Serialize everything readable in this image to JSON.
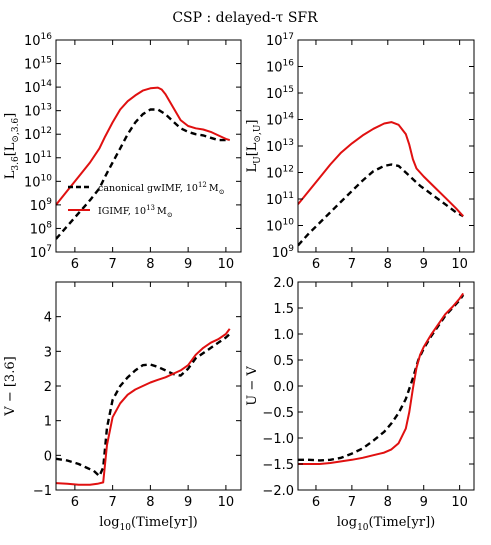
{
  "figure_title": "CSP : delayed-τ SFR",
  "legend": [
    {
      "label": "canonical gwIMF,  10",
      "sup": "12",
      "unit": "M",
      "unit_sub": "⊙",
      "style": "dashed",
      "color": "#000000"
    },
    {
      "label": "IGIMF,  10",
      "sup": "13",
      "unit": "M",
      "unit_sub": "⊙",
      "style": "solid",
      "color": "#e01010"
    }
  ],
  "chart_data": [
    {
      "id": "tl",
      "type": "line",
      "title": "",
      "xlabel": "",
      "ylabel_main": "L",
      "ylabel_sub": "3.6",
      "ylabel_tail": "[L",
      "ylabel_tail_sub": "⊙,3.6",
      "ylabel_end": "]",
      "xlim": [
        5.5,
        10.4
      ],
      "ylim": [
        7,
        16
      ],
      "yscale": "log",
      "xticks": [
        6,
        7,
        8,
        9,
        10
      ],
      "yticks": [
        7,
        8,
        9,
        10,
        11,
        12,
        13,
        14,
        15,
        16
      ],
      "ytick_prefix": "10",
      "series": [
        {
          "name": "canonical gwIMF",
          "color": "#000000",
          "style": "dashed",
          "x": [
            5.5,
            5.8,
            6.1,
            6.4,
            6.65,
            6.8,
            7.0,
            7.2,
            7.4,
            7.6,
            7.8,
            8.0,
            8.2,
            8.4,
            8.6,
            8.8,
            9.0,
            9.2,
            9.4,
            9.6,
            9.8,
            10.0,
            10.1
          ],
          "y": [
            7.55,
            8.1,
            8.65,
            9.2,
            9.7,
            10.2,
            10.8,
            11.4,
            12.0,
            12.5,
            12.85,
            13.05,
            13.05,
            12.85,
            12.55,
            12.25,
            12.1,
            12.0,
            11.95,
            11.85,
            11.75,
            11.75,
            11.75
          ]
        },
        {
          "name": "IGIMF",
          "color": "#e01010",
          "style": "solid",
          "x": [
            5.5,
            5.8,
            6.1,
            6.4,
            6.65,
            6.8,
            7.0,
            7.2,
            7.4,
            7.6,
            7.8,
            8.0,
            8.2,
            8.3,
            8.4,
            8.6,
            8.8,
            9.0,
            9.2,
            9.4,
            9.6,
            9.8,
            10.0,
            10.1
          ],
          "y": [
            9.0,
            9.6,
            10.2,
            10.8,
            11.4,
            11.9,
            12.5,
            13.05,
            13.4,
            13.65,
            13.85,
            13.95,
            13.98,
            13.9,
            13.7,
            13.15,
            12.6,
            12.35,
            12.25,
            12.2,
            12.1,
            11.95,
            11.8,
            11.75
          ]
        }
      ]
    },
    {
      "id": "tr",
      "type": "line",
      "title": "",
      "xlabel": "",
      "ylabel_main": "L",
      "ylabel_sub": "U",
      "ylabel_tail": "[L",
      "ylabel_tail_sub": "⊙,U",
      "ylabel_end": "]",
      "xlim": [
        5.5,
        10.4
      ],
      "ylim": [
        9,
        17
      ],
      "yscale": "log",
      "xticks": [
        6,
        7,
        8,
        9,
        10
      ],
      "yticks": [
        9,
        10,
        11,
        12,
        13,
        14,
        15,
        16,
        17
      ],
      "ytick_prefix": "10",
      "series": [
        {
          "name": "canonical gwIMF",
          "color": "#000000",
          "style": "dashed",
          "x": [
            5.5,
            5.8,
            6.1,
            6.4,
            6.7,
            7.0,
            7.3,
            7.6,
            7.9,
            8.1,
            8.3,
            8.5,
            8.7,
            8.9,
            9.1,
            9.3,
            9.6,
            9.9,
            10.1
          ],
          "y": [
            9.25,
            9.7,
            10.1,
            10.5,
            10.9,
            11.3,
            11.7,
            12.05,
            12.25,
            12.3,
            12.25,
            12.0,
            11.75,
            11.5,
            11.3,
            11.1,
            10.8,
            10.5,
            10.35
          ]
        },
        {
          "name": "IGIMF",
          "color": "#e01010",
          "style": "solid",
          "x": [
            5.5,
            5.8,
            6.1,
            6.4,
            6.7,
            7.0,
            7.3,
            7.6,
            7.9,
            8.1,
            8.3,
            8.5,
            8.6,
            8.7,
            8.8,
            9.0,
            9.3,
            9.6,
            9.9,
            10.1
          ],
          "y": [
            10.8,
            11.3,
            11.8,
            12.3,
            12.75,
            13.1,
            13.4,
            13.65,
            13.85,
            13.9,
            13.8,
            13.45,
            13.05,
            12.5,
            12.15,
            11.85,
            11.45,
            11.05,
            10.65,
            10.35
          ]
        }
      ]
    },
    {
      "id": "bl",
      "type": "line",
      "title": "",
      "xlabel": "log10(Time[yr])",
      "xlabel_main": "log",
      "xlabel_sub": "10",
      "xlabel_tail": "(Time[yr])",
      "ylabel": "V − [3.6]",
      "xlim": [
        5.5,
        10.4
      ],
      "ylim": [
        -1,
        5
      ],
      "yscale": "linear",
      "xticks": [
        6,
        7,
        8,
        9,
        10
      ],
      "yticks": [
        -1,
        0,
        1,
        2,
        3,
        4
      ],
      "series": [
        {
          "name": "canonical gwIMF",
          "color": "#000000",
          "style": "dashed",
          "x": [
            5.5,
            5.8,
            6.1,
            6.3,
            6.5,
            6.65,
            6.75,
            6.85,
            7.0,
            7.2,
            7.4,
            7.6,
            7.8,
            8.0,
            8.2,
            8.4,
            8.6,
            8.8,
            9.0,
            9.2,
            9.4,
            9.6,
            9.8,
            10.0,
            10.1
          ],
          "y": [
            -0.1,
            -0.15,
            -0.25,
            -0.35,
            -0.45,
            -0.6,
            -0.35,
            0.8,
            1.6,
            2.0,
            2.25,
            2.45,
            2.6,
            2.62,
            2.55,
            2.45,
            2.35,
            2.3,
            2.5,
            2.8,
            2.95,
            3.1,
            3.25,
            3.4,
            3.5
          ]
        },
        {
          "name": "IGIMF",
          "color": "#e01010",
          "style": "solid",
          "x": [
            5.5,
            5.8,
            6.1,
            6.4,
            6.6,
            6.75,
            6.85,
            7.0,
            7.2,
            7.4,
            7.6,
            7.8,
            8.0,
            8.2,
            8.4,
            8.6,
            8.8,
            9.0,
            9.2,
            9.4,
            9.6,
            9.8,
            10.0,
            10.1
          ],
          "y": [
            -0.8,
            -0.82,
            -0.85,
            -0.85,
            -0.82,
            -0.78,
            0.3,
            1.1,
            1.5,
            1.75,
            1.9,
            2.0,
            2.1,
            2.18,
            2.25,
            2.35,
            2.45,
            2.6,
            2.9,
            3.1,
            3.25,
            3.35,
            3.5,
            3.65
          ]
        }
      ]
    },
    {
      "id": "br",
      "type": "line",
      "title": "",
      "xlabel": "log10(Time[yr])",
      "xlabel_main": "log",
      "xlabel_sub": "10",
      "xlabel_tail": "(Time[yr])",
      "ylabel": "U − V",
      "xlim": [
        5.5,
        10.4
      ],
      "ylim": [
        -2.0,
        2.0
      ],
      "yscale": "linear",
      "xticks": [
        6,
        7,
        8,
        9,
        10
      ],
      "yticks": [
        -2.0,
        -1.5,
        -1.0,
        -0.5,
        0.0,
        0.5,
        1.0,
        1.5,
        2.0
      ],
      "series": [
        {
          "name": "canonical gwIMF",
          "color": "#000000",
          "style": "dashed",
          "x": [
            5.5,
            5.8,
            6.1,
            6.4,
            6.7,
            7.0,
            7.3,
            7.6,
            7.9,
            8.1,
            8.3,
            8.5,
            8.7,
            8.85,
            9.0,
            9.2,
            9.4,
            9.6,
            9.8,
            10.0,
            10.1
          ],
          "y": [
            -1.42,
            -1.42,
            -1.43,
            -1.42,
            -1.38,
            -1.3,
            -1.2,
            -1.05,
            -0.88,
            -0.72,
            -0.52,
            -0.25,
            0.15,
            0.5,
            0.72,
            0.95,
            1.15,
            1.35,
            1.5,
            1.65,
            1.75
          ]
        },
        {
          "name": "IGIMF",
          "color": "#e01010",
          "style": "solid",
          "x": [
            5.5,
            5.8,
            6.1,
            6.4,
            6.7,
            7.0,
            7.3,
            7.6,
            7.9,
            8.1,
            8.3,
            8.5,
            8.6,
            8.7,
            8.8,
            8.9,
            9.0,
            9.2,
            9.4,
            9.6,
            9.8,
            10.0,
            10.1
          ],
          "y": [
            -1.5,
            -1.5,
            -1.5,
            -1.48,
            -1.45,
            -1.42,
            -1.38,
            -1.33,
            -1.28,
            -1.22,
            -1.1,
            -0.82,
            -0.5,
            -0.05,
            0.35,
            0.6,
            0.75,
            0.98,
            1.18,
            1.38,
            1.52,
            1.68,
            1.78
          ]
        }
      ]
    }
  ]
}
